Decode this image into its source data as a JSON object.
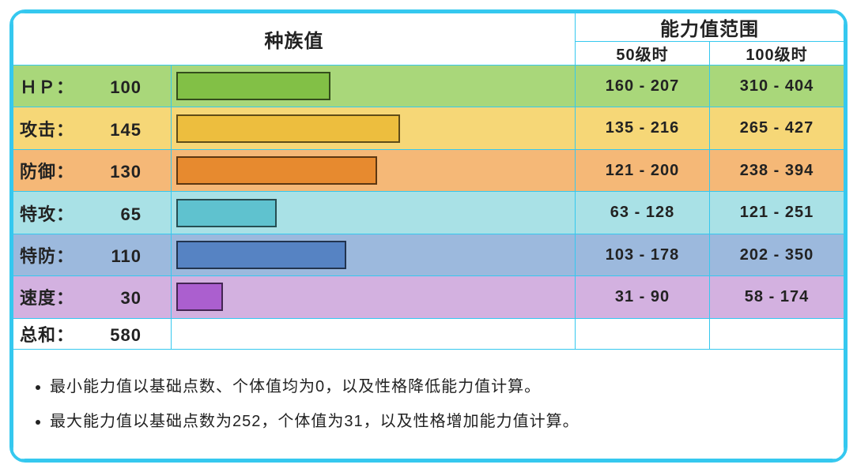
{
  "maxStat": 255,
  "border_color": "#35c8ef",
  "headers": {
    "base": "种族值",
    "range": "能力值范围",
    "lv50": "50级时",
    "lv100": "100级时"
  },
  "stats": [
    {
      "key": "hp",
      "name": "ＨＰ：",
      "value": 100,
      "row_bg": "#a9d77a",
      "bar_color": "#82c046",
      "lv50": "160 - 207",
      "lv100": "310 - 404"
    },
    {
      "key": "atk",
      "name": "攻击：",
      "value": 145,
      "row_bg": "#f6d777",
      "bar_color": "#edbe3e",
      "lv50": "135 - 216",
      "lv100": "265 - 427"
    },
    {
      "key": "def",
      "name": "防御：",
      "value": 130,
      "row_bg": "#f5b877",
      "bar_color": "#e78a2f",
      "lv50": "121 - 200",
      "lv100": "238 - 394"
    },
    {
      "key": "spa",
      "name": "特攻：",
      "value": 65,
      "row_bg": "#a9e1e6",
      "bar_color": "#5fc2cf",
      "lv50": "63 - 128",
      "lv100": "121 - 251"
    },
    {
      "key": "spd",
      "name": "特防：",
      "value": 110,
      "row_bg": "#9cb9dd",
      "bar_color": "#5683c3",
      "lv50": "103 - 178",
      "lv100": "202 - 350"
    },
    {
      "key": "spe",
      "name": "速度：",
      "value": 30,
      "row_bg": "#d3b1e0",
      "bar_color": "#ab5fcf",
      "lv50": "31 - 90",
      "lv100": "58 - 174"
    }
  ],
  "total": {
    "name": "总和：",
    "value": 580
  },
  "footnotes": [
    "最小能力值以基础点数、个体值均为0，以及性格降低能力值计算。",
    "最大能力值以基础点数为252，个体值为31，以及性格增加能力值计算。"
  ]
}
